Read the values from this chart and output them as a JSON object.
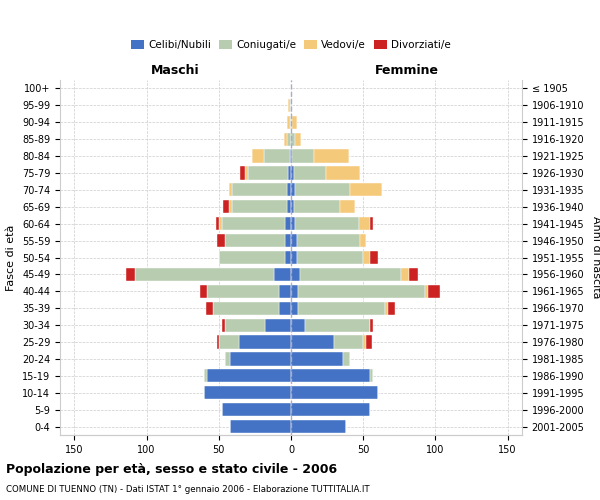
{
  "age_groups": [
    "0-4",
    "5-9",
    "10-14",
    "15-19",
    "20-24",
    "25-29",
    "30-34",
    "35-39",
    "40-44",
    "45-49",
    "50-54",
    "55-59",
    "60-64",
    "65-69",
    "70-74",
    "75-79",
    "80-84",
    "85-89",
    "90-94",
    "95-99",
    "100+"
  ],
  "birth_years": [
    "2001-2005",
    "1996-2000",
    "1991-1995",
    "1986-1990",
    "1981-1985",
    "1976-1980",
    "1971-1975",
    "1966-1970",
    "1961-1965",
    "1956-1960",
    "1951-1955",
    "1946-1950",
    "1941-1945",
    "1936-1940",
    "1931-1935",
    "1926-1930",
    "1921-1925",
    "1916-1920",
    "1911-1915",
    "1906-1910",
    "≤ 1905"
  ],
  "colors": {
    "celibi": "#4472C4",
    "coniugati": "#B8CCB0",
    "vedovi": "#F5C97A",
    "divorziati": "#CC2222"
  },
  "maschi": {
    "celibi": [
      42,
      48,
      60,
      58,
      42,
      36,
      18,
      8,
      8,
      12,
      4,
      4,
      4,
      3,
      3,
      2,
      1,
      0,
      0,
      0,
      0
    ],
    "coniugati": [
      0,
      0,
      0,
      2,
      4,
      14,
      28,
      46,
      50,
      96,
      46,
      42,
      44,
      38,
      38,
      28,
      18,
      3,
      1,
      1,
      0
    ],
    "vedovi": [
      0,
      0,
      0,
      0,
      0,
      0,
      0,
      0,
      0,
      0,
      0,
      0,
      2,
      2,
      2,
      2,
      8,
      2,
      2,
      1,
      0
    ],
    "divorziati": [
      0,
      0,
      0,
      0,
      0,
      1,
      2,
      5,
      5,
      6,
      0,
      5,
      2,
      4,
      0,
      3,
      0,
      0,
      0,
      0,
      0
    ]
  },
  "femmine": {
    "nubili": [
      38,
      55,
      60,
      55,
      36,
      30,
      10,
      5,
      5,
      6,
      4,
      4,
      3,
      2,
      3,
      2,
      1,
      0,
      0,
      0,
      0
    ],
    "coniugate": [
      0,
      0,
      0,
      2,
      5,
      20,
      45,
      60,
      88,
      70,
      46,
      44,
      44,
      32,
      38,
      22,
      15,
      3,
      1,
      0,
      0
    ],
    "vedove": [
      0,
      0,
      0,
      0,
      0,
      2,
      0,
      2,
      2,
      6,
      5,
      4,
      8,
      10,
      22,
      24,
      24,
      4,
      3,
      1,
      0
    ],
    "divorziate": [
      0,
      0,
      0,
      0,
      0,
      4,
      2,
      5,
      8,
      6,
      5,
      0,
      2,
      0,
      0,
      0,
      0,
      0,
      0,
      0,
      0
    ]
  },
  "xlim": 160,
  "xticks": [
    -150,
    -100,
    -50,
    0,
    50,
    100,
    150
  ],
  "title": "Popolazione per età, sesso e stato civile - 2006",
  "subtitle": "COMUNE DI TUENNO (TN) - Dati ISTAT 1° gennaio 2006 - Elaborazione TUTTITALIA.IT",
  "ylabel_left": "Fasce di età",
  "ylabel_right": "Anni di nascita",
  "header_left": "Maschi",
  "header_right": "Femmine",
  "legend_labels": [
    "Celibi/Nubili",
    "Coniugati/e",
    "Vedovi/e",
    "Divorziati/e"
  ]
}
